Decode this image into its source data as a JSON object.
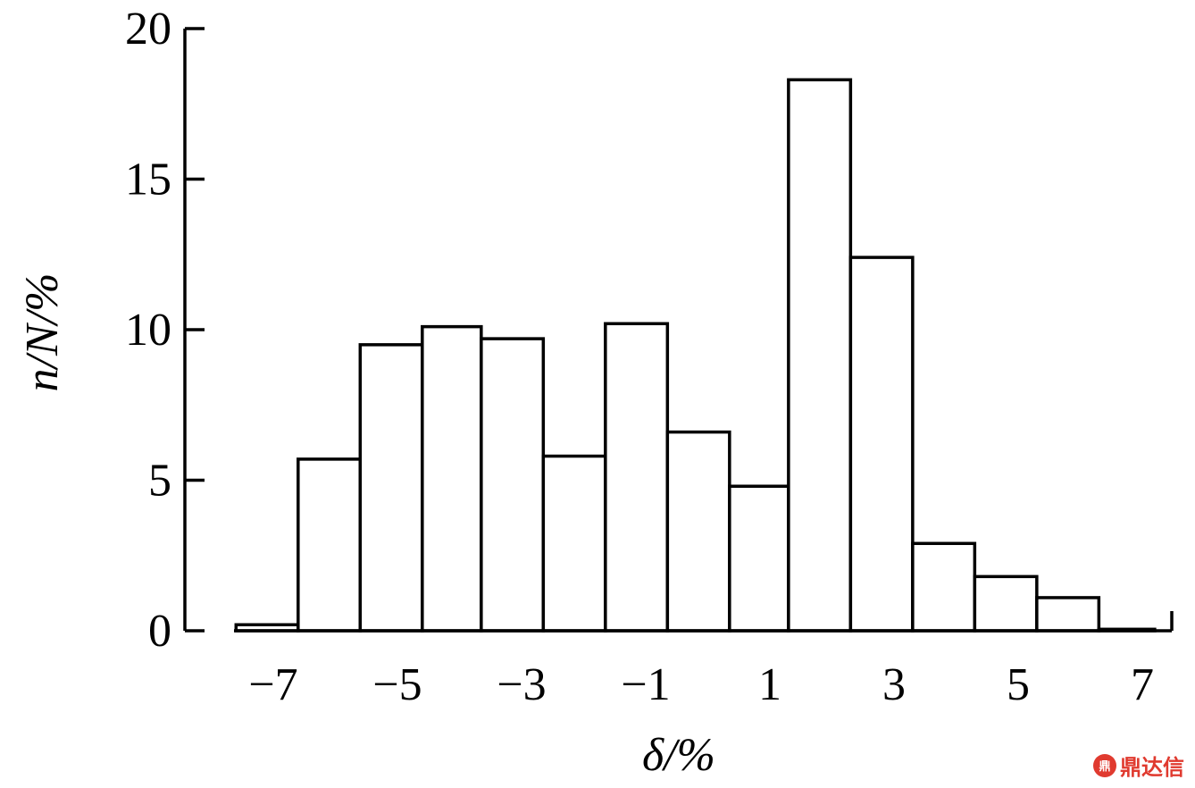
{
  "chart_data": {
    "type": "bar",
    "title": "",
    "xlabel": "δ/%",
    "ylabel": "n/N/%",
    "ylim": [
      0,
      20
    ],
    "xlim": [
      -8.2,
      7.5
    ],
    "yticks": [
      0,
      5,
      10,
      15,
      20
    ],
    "xticks": [
      {
        "value": -7,
        "label": "−7"
      },
      {
        "value": -5,
        "label": "−5"
      },
      {
        "value": -3,
        "label": "−3"
      },
      {
        "value": -1,
        "label": "−1"
      },
      {
        "value": 1,
        "label": "1"
      },
      {
        "value": 3,
        "label": "3"
      },
      {
        "value": 5,
        "label": "5"
      },
      {
        "value": 7,
        "label": "7"
      }
    ],
    "bins": [
      {
        "start": -7.6,
        "end": -6.6,
        "value": 0.2
      },
      {
        "start": -6.6,
        "end": -5.6,
        "value": 5.7
      },
      {
        "start": -5.6,
        "end": -4.6,
        "value": 9.5
      },
      {
        "start": -4.6,
        "end": -3.65,
        "value": 10.1
      },
      {
        "start": -3.65,
        "end": -2.65,
        "value": 9.7
      },
      {
        "start": -2.65,
        "end": -1.65,
        "value": 5.8
      },
      {
        "start": -1.65,
        "end": -0.65,
        "value": 10.2
      },
      {
        "start": -0.65,
        "end": 0.35,
        "value": 6.6
      },
      {
        "start": 0.35,
        "end": 1.3,
        "value": 4.8
      },
      {
        "start": 1.3,
        "end": 2.3,
        "value": 18.3
      },
      {
        "start": 2.3,
        "end": 3.3,
        "value": 12.4
      },
      {
        "start": 3.3,
        "end": 4.3,
        "value": 2.9
      },
      {
        "start": 4.3,
        "end": 5.3,
        "value": 1.8
      },
      {
        "start": 5.3,
        "end": 6.3,
        "value": 1.1
      },
      {
        "start": 6.3,
        "end": 7.2,
        "value": 0.05
      }
    ],
    "grid": false,
    "legend": "none"
  },
  "watermark": {
    "logo_text": "鼎",
    "text": "鼎达信"
  }
}
